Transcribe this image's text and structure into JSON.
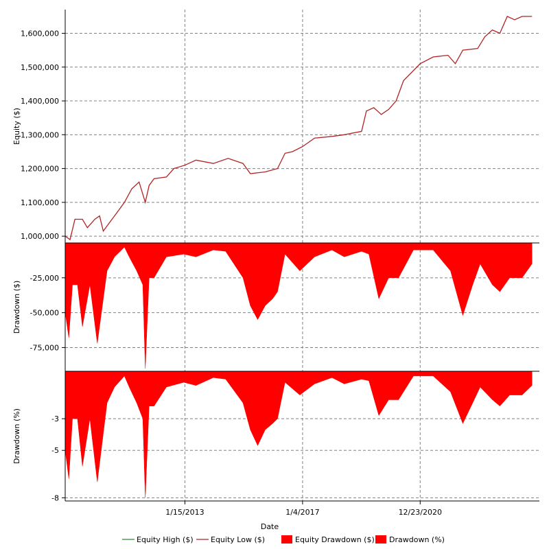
{
  "chart_data": {
    "type": "line",
    "x_range": [
      "2009-01-01",
      "2024-12-31"
    ],
    "x_ticks": [
      {
        "date": "2013-01-15",
        "label": "1/15/2013"
      },
      {
        "date": "2017-01-04",
        "label": "1/4/2017"
      },
      {
        "date": "2020-12-23",
        "label": "12/23/2020"
      }
    ],
    "xlabel": "Date",
    "grid": true,
    "legend": {
      "placement": "bottom",
      "entries": [
        {
          "label": "Equity High ($)",
          "color": "#2e8b2e",
          "kind": "line"
        },
        {
          "label": "Equity Low ($)",
          "color": "#b22222",
          "kind": "line"
        },
        {
          "label": "Equity Drawdown ($)",
          "color": "#ff0000",
          "kind": "box"
        },
        {
          "label": "Drawdown (%)",
          "color": "#ff0000",
          "kind": "box"
        }
      ]
    },
    "panels": [
      {
        "id": "equity",
        "ylabel": "Equity ($)",
        "ylim": [
          980000,
          1670000
        ],
        "yticks": [
          {
            "value": 1000000,
            "label": "1,000,000"
          },
          {
            "value": 1100000,
            "label": "1,100,000"
          },
          {
            "value": 1200000,
            "label": "1,200,000"
          },
          {
            "value": 1300000,
            "label": "1,300,000"
          },
          {
            "value": 1400000,
            "label": "1,400,000"
          },
          {
            "value": 1500000,
            "label": "1,500,000"
          },
          {
            "value": 1600000,
            "label": "1,600,000"
          }
        ],
        "series": [
          {
            "name": "Equity Low ($)",
            "color": "#b22222",
            "points": [
              [
                "2009-01-01",
                1000000
              ],
              [
                "2009-03-01",
                990000
              ],
              [
                "2009-05-01",
                1050000
              ],
              [
                "2009-08-01",
                1050000
              ],
              [
                "2009-10-01",
                1025000
              ],
              [
                "2010-01-01",
                1050000
              ],
              [
                "2010-03-01",
                1060000
              ],
              [
                "2010-04-15",
                1015000
              ],
              [
                "2010-07-01",
                1040000
              ],
              [
                "2010-10-01",
                1070000
              ],
              [
                "2011-01-01",
                1100000
              ],
              [
                "2011-04-01",
                1140000
              ],
              [
                "2011-07-01",
                1160000
              ],
              [
                "2011-09-15",
                1100000
              ],
              [
                "2011-11-01",
                1150000
              ],
              [
                "2012-01-01",
                1170000
              ],
              [
                "2012-06-01",
                1175000
              ],
              [
                "2012-09-01",
                1200000
              ],
              [
                "2013-01-15",
                1210000
              ],
              [
                "2013-06-01",
                1225000
              ],
              [
                "2014-01-01",
                1215000
              ],
              [
                "2014-07-01",
                1230000
              ],
              [
                "2015-01-01",
                1215000
              ],
              [
                "2015-04-01",
                1185000
              ],
              [
                "2015-10-01",
                1190000
              ],
              [
                "2016-03-01",
                1200000
              ],
              [
                "2016-06-01",
                1245000
              ],
              [
                "2016-09-01",
                1250000
              ],
              [
                "2017-01-04",
                1265000
              ],
              [
                "2017-06-01",
                1290000
              ],
              [
                "2018-01-01",
                1295000
              ],
              [
                "2018-06-01",
                1300000
              ],
              [
                "2019-01-01",
                1310000
              ],
              [
                "2019-03-01",
                1370000
              ],
              [
                "2019-06-01",
                1380000
              ],
              [
                "2019-09-01",
                1360000
              ],
              [
                "2019-12-01",
                1375000
              ],
              [
                "2020-03-01",
                1400000
              ],
              [
                "2020-06-01",
                1460000
              ],
              [
                "2020-12-23",
                1510000
              ],
              [
                "2021-06-01",
                1530000
              ],
              [
                "2021-12-01",
                1535000
              ],
              [
                "2022-03-01",
                1510000
              ],
              [
                "2022-06-01",
                1550000
              ],
              [
                "2022-12-01",
                1555000
              ],
              [
                "2023-03-01",
                1590000
              ],
              [
                "2023-06-01",
                1610000
              ],
              [
                "2023-09-01",
                1600000
              ],
              [
                "2023-12-01",
                1650000
              ],
              [
                "2024-03-01",
                1640000
              ],
              [
                "2024-06-01",
                1650000
              ],
              [
                "2024-10-01",
                1650000
              ]
            ]
          }
        ]
      },
      {
        "id": "drawdown-usd",
        "ylabel": "Drawdown ($)",
        "ylim": [
          -92000,
          0
        ],
        "yticks": [
          {
            "value": -25000,
            "label": "-25,000"
          },
          {
            "value": -50000,
            "label": "-50,000"
          },
          {
            "value": -75000,
            "label": "-75,000"
          }
        ],
        "series": [
          {
            "name": "Equity Drawdown ($)",
            "color": "#ff0000",
            "points": [
              [
                "2009-01-01",
                -50000
              ],
              [
                "2009-02-15",
                -68000
              ],
              [
                "2009-04-01",
                -30000
              ],
              [
                "2009-06-01",
                -30000
              ],
              [
                "2009-08-01",
                -60000
              ],
              [
                "2009-11-01",
                -30000
              ],
              [
                "2010-02-01",
                -72000
              ],
              [
                "2010-06-01",
                -20000
              ],
              [
                "2010-09-01",
                -10000
              ],
              [
                "2011-01-01",
                -3000
              ],
              [
                "2011-03-01",
                -10000
              ],
              [
                "2011-06-01",
                -20000
              ],
              [
                "2011-08-15",
                -30000
              ],
              [
                "2011-09-15",
                -90000
              ],
              [
                "2011-11-01",
                -25000
              ],
              [
                "2012-01-01",
                -25000
              ],
              [
                "2012-06-01",
                -10000
              ],
              [
                "2013-01-01",
                -8000
              ],
              [
                "2013-06-01",
                -10000
              ],
              [
                "2014-01-01",
                -5000
              ],
              [
                "2014-06-01",
                -6000
              ],
              [
                "2015-01-01",
                -25000
              ],
              [
                "2015-04-01",
                -45000
              ],
              [
                "2015-07-01",
                -55000
              ],
              [
                "2015-10-01",
                -45000
              ],
              [
                "2016-01-01",
                -40000
              ],
              [
                "2016-03-01",
                -35000
              ],
              [
                "2016-06-01",
                -8000
              ],
              [
                "2016-12-01",
                -20000
              ],
              [
                "2017-06-01",
                -10000
              ],
              [
                "2018-01-01",
                -5000
              ],
              [
                "2018-06-01",
                -10000
              ],
              [
                "2019-01-01",
                -6000
              ],
              [
                "2019-04-01",
                -8000
              ],
              [
                "2019-08-01",
                -40000
              ],
              [
                "2019-12-01",
                -25000
              ],
              [
                "2020-04-01",
                -25000
              ],
              [
                "2020-10-01",
                -5000
              ],
              [
                "2021-06-01",
                -5000
              ],
              [
                "2022-01-01",
                -20000
              ],
              [
                "2022-06-01",
                -52000
              ],
              [
                "2022-10-01",
                -30000
              ],
              [
                "2023-01-01",
                -15000
              ],
              [
                "2023-06-01",
                -30000
              ],
              [
                "2023-09-01",
                -35000
              ],
              [
                "2024-01-01",
                -25000
              ],
              [
                "2024-06-01",
                -25000
              ],
              [
                "2024-10-01",
                -15000
              ]
            ]
          }
        ]
      },
      {
        "id": "drawdown-pct",
        "ylabel": "Drawdown (%)",
        "ylim": [
          -8.2,
          0
        ],
        "yticks": [
          {
            "value": -3,
            "label": "-3"
          },
          {
            "value": -5,
            "label": "-5"
          },
          {
            "value": -8,
            "label": "-8"
          }
        ],
        "series": [
          {
            "name": "Drawdown (%)",
            "color": "#ff0000",
            "points": [
              [
                "2009-01-01",
                -5.0
              ],
              [
                "2009-02-15",
                -6.8
              ],
              [
                "2009-04-01",
                -3.0
              ],
              [
                "2009-06-01",
                -3.0
              ],
              [
                "2009-08-01",
                -6.0
              ],
              [
                "2009-11-01",
                -3.0
              ],
              [
                "2010-02-01",
                -7.0
              ],
              [
                "2010-06-01",
                -2.0
              ],
              [
                "2010-09-01",
                -1.0
              ],
              [
                "2011-01-01",
                -0.3
              ],
              [
                "2011-03-01",
                -1.0
              ],
              [
                "2011-06-01",
                -2.0
              ],
              [
                "2011-08-15",
                -3.0
              ],
              [
                "2011-09-15",
                -8.0
              ],
              [
                "2011-11-01",
                -2.2
              ],
              [
                "2012-01-01",
                -2.2
              ],
              [
                "2012-06-01",
                -1.0
              ],
              [
                "2013-01-01",
                -0.7
              ],
              [
                "2013-06-01",
                -0.9
              ],
              [
                "2014-01-01",
                -0.4
              ],
              [
                "2014-06-01",
                -0.5
              ],
              [
                "2015-01-01",
                -2.0
              ],
              [
                "2015-04-01",
                -3.7
              ],
              [
                "2015-07-01",
                -4.7
              ],
              [
                "2015-10-01",
                -3.7
              ],
              [
                "2016-01-01",
                -3.3
              ],
              [
                "2016-03-01",
                -3.0
              ],
              [
                "2016-06-01",
                -0.7
              ],
              [
                "2016-12-01",
                -1.5
              ],
              [
                "2017-06-01",
                -0.8
              ],
              [
                "2018-01-01",
                -0.4
              ],
              [
                "2018-06-01",
                -0.8
              ],
              [
                "2019-01-01",
                -0.5
              ],
              [
                "2019-04-01",
                -0.6
              ],
              [
                "2019-08-01",
                -2.8
              ],
              [
                "2019-12-01",
                -1.8
              ],
              [
                "2020-04-01",
                -1.8
              ],
              [
                "2020-10-01",
                -0.3
              ],
              [
                "2021-06-01",
                -0.3
              ],
              [
                "2022-01-01",
                -1.3
              ],
              [
                "2022-06-01",
                -3.3
              ],
              [
                "2022-10-01",
                -2.0
              ],
              [
                "2023-01-01",
                -1.0
              ],
              [
                "2023-06-01",
                -1.8
              ],
              [
                "2023-09-01",
                -2.2
              ],
              [
                "2024-01-01",
                -1.5
              ],
              [
                "2024-06-01",
                -1.5
              ],
              [
                "2024-10-01",
                -0.9
              ]
            ]
          }
        ]
      }
    ]
  }
}
